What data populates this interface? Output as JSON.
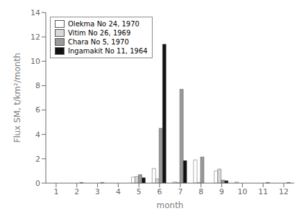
{
  "chart_data": {
    "type": "bar",
    "categories": [
      "1",
      "2",
      "3",
      "4",
      "5",
      "6",
      "7",
      "8",
      "9",
      "10",
      "11",
      "12"
    ],
    "series": [
      {
        "name": "Olekma No 24, 1970",
        "color": "#ffffff",
        "values": [
          0.0,
          0.0,
          0.0,
          0.0,
          0.5,
          1.2,
          0.1,
          1.9,
          1.0,
          0.1,
          0.0,
          0.0
        ]
      },
      {
        "name": "Vitim No 26, 1969",
        "color": "#d8d8d8",
        "values": [
          0.0,
          0.0,
          0.0,
          0.0,
          0.55,
          0.35,
          0.05,
          0.05,
          1.15,
          0.0,
          0.0,
          0.0
        ]
      },
      {
        "name": "Chara No 5, 1970",
        "color": "#999999",
        "values": [
          0.0,
          0.0,
          0.0,
          0.0,
          0.7,
          4.5,
          7.7,
          2.15,
          0.25,
          0.0,
          0.0,
          0.0
        ]
      },
      {
        "name": "Ingamakit No 11, 1964",
        "color": "#111111",
        "values": [
          0.0,
          0.05,
          0.05,
          0.0,
          0.45,
          11.4,
          1.85,
          0.0,
          0.2,
          0.0,
          0.05,
          0.05
        ]
      }
    ],
    "xlabel": "month",
    "ylabel": "Flux SM, t/km²/month",
    "ylim": [
      0,
      14
    ],
    "yticks": [
      0,
      2,
      4,
      6,
      8,
      10,
      12,
      14
    ],
    "grid": false,
    "legend": "upper left"
  }
}
